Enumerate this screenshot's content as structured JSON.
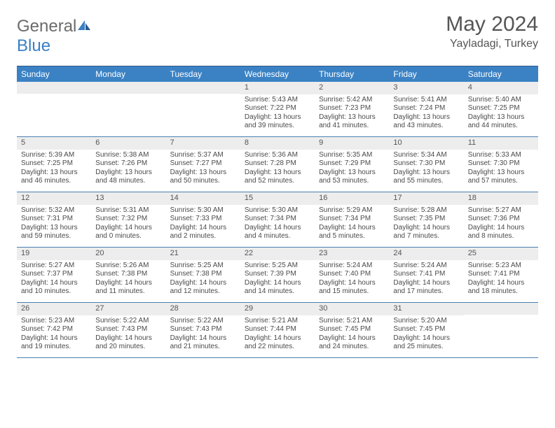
{
  "brand": {
    "part1": "General",
    "part2": "Blue"
  },
  "title": "May 2024",
  "location": "Yayladagi, Turkey",
  "colors": {
    "header_bg": "#3b82c4",
    "daynum_bg": "#ededed",
    "border": "#4a7fb0",
    "text": "#4a4a4a",
    "title": "#555555",
    "brand_blue": "#3b7fc4"
  },
  "fonts": {
    "body_pt": 10,
    "title_pt": 30,
    "subtitle_pt": 16,
    "dow_pt": 12
  },
  "dow": [
    "Sunday",
    "Monday",
    "Tuesday",
    "Wednesday",
    "Thursday",
    "Friday",
    "Saturday"
  ],
  "weeks": [
    [
      null,
      null,
      null,
      {
        "n": "1",
        "sunrise": "5:43 AM",
        "sunset": "7:22 PM",
        "dl": "13 hours and 39 minutes."
      },
      {
        "n": "2",
        "sunrise": "5:42 AM",
        "sunset": "7:23 PM",
        "dl": "13 hours and 41 minutes."
      },
      {
        "n": "3",
        "sunrise": "5:41 AM",
        "sunset": "7:24 PM",
        "dl": "13 hours and 43 minutes."
      },
      {
        "n": "4",
        "sunrise": "5:40 AM",
        "sunset": "7:25 PM",
        "dl": "13 hours and 44 minutes."
      }
    ],
    [
      {
        "n": "5",
        "sunrise": "5:39 AM",
        "sunset": "7:25 PM",
        "dl": "13 hours and 46 minutes."
      },
      {
        "n": "6",
        "sunrise": "5:38 AM",
        "sunset": "7:26 PM",
        "dl": "13 hours and 48 minutes."
      },
      {
        "n": "7",
        "sunrise": "5:37 AM",
        "sunset": "7:27 PM",
        "dl": "13 hours and 50 minutes."
      },
      {
        "n": "8",
        "sunrise": "5:36 AM",
        "sunset": "7:28 PM",
        "dl": "13 hours and 52 minutes."
      },
      {
        "n": "9",
        "sunrise": "5:35 AM",
        "sunset": "7:29 PM",
        "dl": "13 hours and 53 minutes."
      },
      {
        "n": "10",
        "sunrise": "5:34 AM",
        "sunset": "7:30 PM",
        "dl": "13 hours and 55 minutes."
      },
      {
        "n": "11",
        "sunrise": "5:33 AM",
        "sunset": "7:30 PM",
        "dl": "13 hours and 57 minutes."
      }
    ],
    [
      {
        "n": "12",
        "sunrise": "5:32 AM",
        "sunset": "7:31 PM",
        "dl": "13 hours and 59 minutes."
      },
      {
        "n": "13",
        "sunrise": "5:31 AM",
        "sunset": "7:32 PM",
        "dl": "14 hours and 0 minutes."
      },
      {
        "n": "14",
        "sunrise": "5:30 AM",
        "sunset": "7:33 PM",
        "dl": "14 hours and 2 minutes."
      },
      {
        "n": "15",
        "sunrise": "5:30 AM",
        "sunset": "7:34 PM",
        "dl": "14 hours and 4 minutes."
      },
      {
        "n": "16",
        "sunrise": "5:29 AM",
        "sunset": "7:34 PM",
        "dl": "14 hours and 5 minutes."
      },
      {
        "n": "17",
        "sunrise": "5:28 AM",
        "sunset": "7:35 PM",
        "dl": "14 hours and 7 minutes."
      },
      {
        "n": "18",
        "sunrise": "5:27 AM",
        "sunset": "7:36 PM",
        "dl": "14 hours and 8 minutes."
      }
    ],
    [
      {
        "n": "19",
        "sunrise": "5:27 AM",
        "sunset": "7:37 PM",
        "dl": "14 hours and 10 minutes."
      },
      {
        "n": "20",
        "sunrise": "5:26 AM",
        "sunset": "7:38 PM",
        "dl": "14 hours and 11 minutes."
      },
      {
        "n": "21",
        "sunrise": "5:25 AM",
        "sunset": "7:38 PM",
        "dl": "14 hours and 12 minutes."
      },
      {
        "n": "22",
        "sunrise": "5:25 AM",
        "sunset": "7:39 PM",
        "dl": "14 hours and 14 minutes."
      },
      {
        "n": "23",
        "sunrise": "5:24 AM",
        "sunset": "7:40 PM",
        "dl": "14 hours and 15 minutes."
      },
      {
        "n": "24",
        "sunrise": "5:24 AM",
        "sunset": "7:41 PM",
        "dl": "14 hours and 17 minutes."
      },
      {
        "n": "25",
        "sunrise": "5:23 AM",
        "sunset": "7:41 PM",
        "dl": "14 hours and 18 minutes."
      }
    ],
    [
      {
        "n": "26",
        "sunrise": "5:23 AM",
        "sunset": "7:42 PM",
        "dl": "14 hours and 19 minutes."
      },
      {
        "n": "27",
        "sunrise": "5:22 AM",
        "sunset": "7:43 PM",
        "dl": "14 hours and 20 minutes."
      },
      {
        "n": "28",
        "sunrise": "5:22 AM",
        "sunset": "7:43 PM",
        "dl": "14 hours and 21 minutes."
      },
      {
        "n": "29",
        "sunrise": "5:21 AM",
        "sunset": "7:44 PM",
        "dl": "14 hours and 22 minutes."
      },
      {
        "n": "30",
        "sunrise": "5:21 AM",
        "sunset": "7:45 PM",
        "dl": "14 hours and 24 minutes."
      },
      {
        "n": "31",
        "sunrise": "5:20 AM",
        "sunset": "7:45 PM",
        "dl": "14 hours and 25 minutes."
      },
      null
    ]
  ],
  "labels": {
    "sunrise": "Sunrise:",
    "sunset": "Sunset:",
    "daylight": "Daylight:"
  }
}
